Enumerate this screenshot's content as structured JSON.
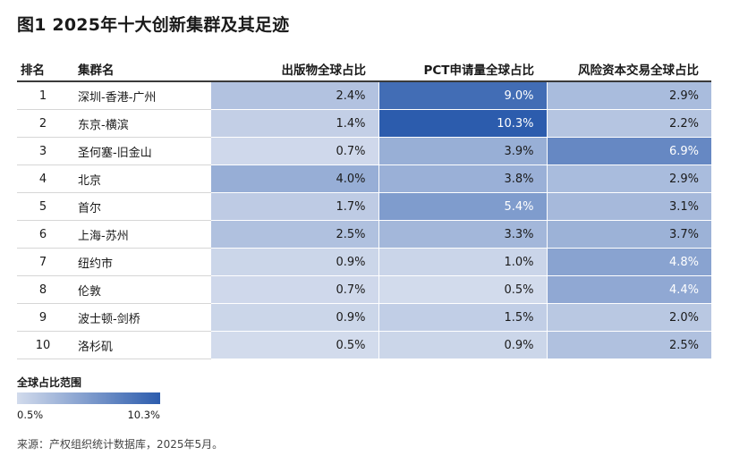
{
  "title": "图1 2025年十大创新集群及其足迹",
  "chart_data": {
    "type": "heatmap",
    "columns": [
      "排名",
      "集群名",
      "出版物全球占比",
      "PCT申请量全球占比",
      "风险资本交易全球占比"
    ],
    "rows": [
      {
        "rank": "1",
        "name": "深圳-香港-广州",
        "values": [
          2.4,
          9.0,
          2.9
        ],
        "labels": [
          "2.4%",
          "9.0%",
          "2.9%"
        ]
      },
      {
        "rank": "2",
        "name": "东京-横滨",
        "values": [
          1.4,
          10.3,
          2.2
        ],
        "labels": [
          "1.4%",
          "10.3%",
          "2.2%"
        ]
      },
      {
        "rank": "3",
        "name": "圣何塞-旧金山",
        "values": [
          0.7,
          3.9,
          6.9
        ],
        "labels": [
          "0.7%",
          "3.9%",
          "6.9%"
        ]
      },
      {
        "rank": "4",
        "name": "北京",
        "values": [
          4.0,
          3.8,
          2.9
        ],
        "labels": [
          "4.0%",
          "3.8%",
          "2.9%"
        ]
      },
      {
        "rank": "5",
        "name": "首尔",
        "values": [
          1.7,
          5.4,
          3.1
        ],
        "labels": [
          "1.7%",
          "5.4%",
          "3.1%"
        ]
      },
      {
        "rank": "6",
        "name": "上海-苏州",
        "values": [
          2.5,
          3.3,
          3.7
        ],
        "labels": [
          "2.5%",
          "3.3%",
          "3.7%"
        ]
      },
      {
        "rank": "7",
        "name": "纽约市",
        "values": [
          0.9,
          1.0,
          4.8
        ],
        "labels": [
          "0.9%",
          "1.0%",
          "4.8%"
        ]
      },
      {
        "rank": "8",
        "name": "伦敦",
        "values": [
          0.7,
          0.5,
          4.4
        ],
        "labels": [
          "0.7%",
          "0.5%",
          "4.4%"
        ]
      },
      {
        "rank": "9",
        "name": "波士顿-剑桥",
        "values": [
          0.9,
          1.5,
          2.0
        ],
        "labels": [
          "0.9%",
          "1.5%",
          "2.0%"
        ]
      },
      {
        "rank": "10",
        "name": "洛杉矶",
        "values": [
          0.5,
          0.9,
          2.5
        ],
        "labels": [
          "0.5%",
          "0.9%",
          "2.5%"
        ]
      }
    ],
    "legend": {
      "title": "全球占比范围",
      "min": 0.5,
      "max": 10.3,
      "min_label": "0.5%",
      "max_label": "10.3%"
    },
    "colors": {
      "low": "#d2dbec",
      "high": "#2c5cad"
    }
  },
  "source": "来源：产权组织统计数据库，2025年5月。"
}
